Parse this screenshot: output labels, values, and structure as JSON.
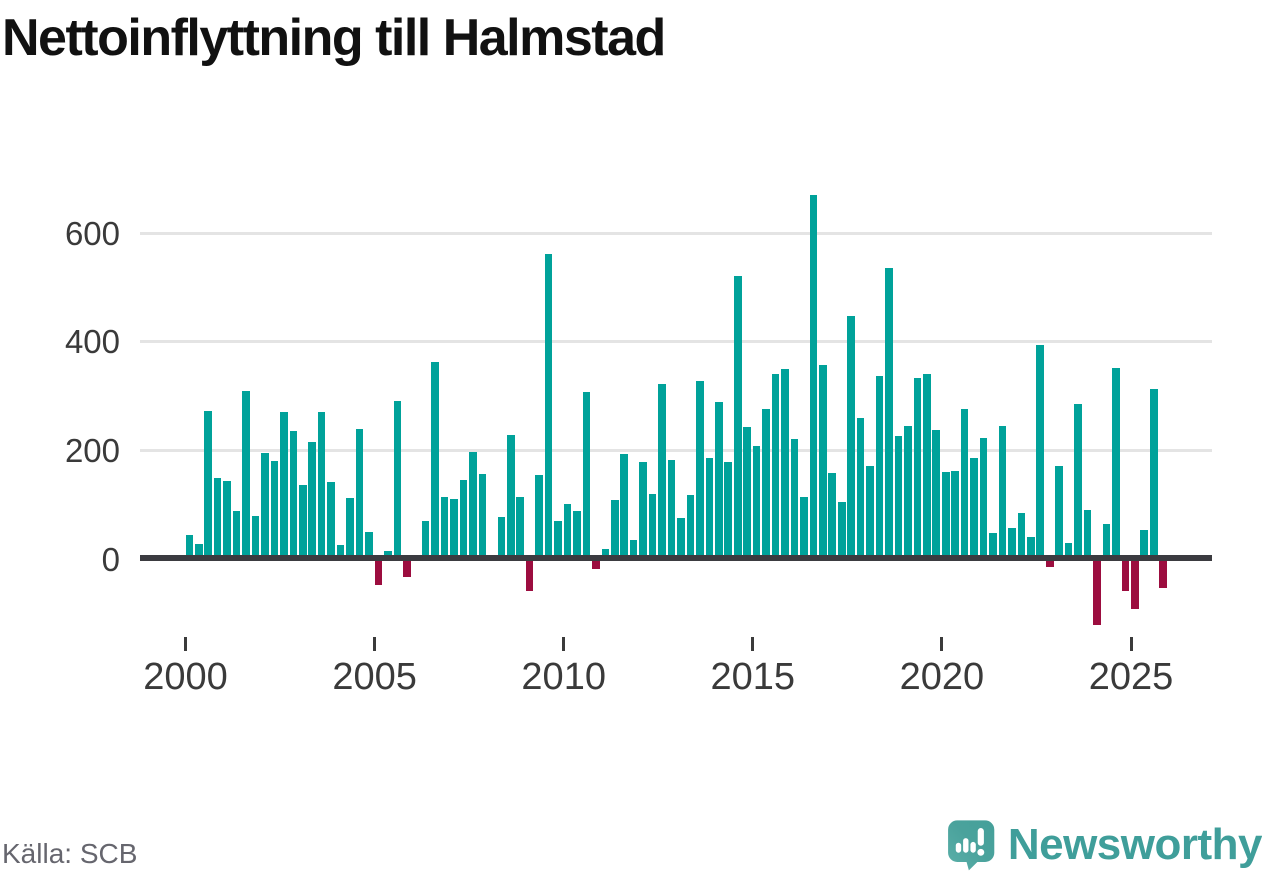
{
  "title": "Nettoinflyttning till Halmstad",
  "source": {
    "label": "Källa: SCB"
  },
  "brand": {
    "name": "Newsworthy"
  },
  "chart_data": {
    "type": "bar",
    "title": "Nettoinflyttning till Halmstad",
    "x_unit": "quarter",
    "start": {
      "year": 2000,
      "quarter": 1
    },
    "end": {
      "year": 2025,
      "quarter": 4
    },
    "values": [
      45,
      28,
      272,
      149,
      144,
      88,
      309,
      79,
      196,
      180,
      271,
      235,
      136,
      215,
      271,
      142,
      26,
      113,
      240,
      50,
      -48,
      15,
      291,
      -33,
      6,
      70,
      362,
      114,
      111,
      145,
      197,
      157,
      0,
      78,
      228,
      114,
      -58,
      154,
      561,
      70,
      101,
      88,
      308,
      -18,
      18,
      109,
      194,
      35,
      178,
      119,
      323,
      182,
      76,
      117,
      328,
      186,
      289,
      178,
      521,
      243,
      208,
      276,
      341,
      350,
      220,
      115,
      670,
      357,
      159,
      105,
      447,
      259,
      172,
      336,
      535,
      226,
      244,
      333,
      340,
      237,
      161,
      162,
      276,
      186,
      223,
      48,
      245,
      57,
      84,
      40,
      394,
      -14,
      171,
      29,
      285,
      91,
      -122,
      64,
      351,
      -58,
      -92,
      54,
      313,
      -53
    ],
    "x_tick_labels": [
      "2000",
      "2005",
      "2010",
      "2015",
      "2020",
      "2025"
    ],
    "y_tick_labels": [
      "0",
      "200",
      "400",
      "600"
    ],
    "ylim": [
      -130,
      700
    ],
    "grid": "horizontal",
    "legend": "none",
    "colors": {
      "positive": "#00a29a",
      "negative": "#9c0d3f"
    }
  }
}
